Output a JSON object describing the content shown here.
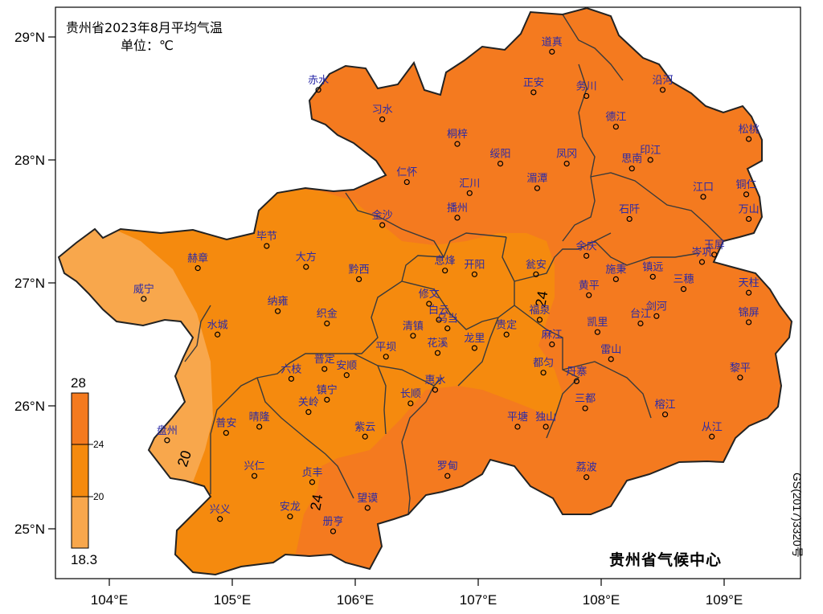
{
  "map": {
    "title": "贵州省2023年8月平均气温",
    "unit": "单位：℃",
    "credit": "贵州省气候中心",
    "approval_no": "GS(2017)3320号"
  },
  "axes": {
    "lon_ticks": [
      "104°E",
      "105°E",
      "106°E",
      "107°E",
      "108°E",
      "109°E"
    ],
    "lat_ticks": [
      "29°N",
      "28°N",
      "27°N",
      "26°N",
      "25°N"
    ]
  },
  "legend": {
    "max": "28",
    "min": "18.3",
    "breaks": [
      "24",
      "20"
    ],
    "colors": [
      "#f47a1f",
      "#f58a0e",
      "#f8a74c"
    ]
  },
  "contours": [
    {
      "label": "20"
    },
    {
      "label": "24"
    },
    {
      "label": "24"
    }
  ],
  "stations": [
    {
      "name": "道真",
      "lon": 107.6,
      "lat": 28.88
    },
    {
      "name": "赤水",
      "lon": 105.7,
      "lat": 28.57
    },
    {
      "name": "习水",
      "lon": 106.22,
      "lat": 28.33
    },
    {
      "name": "正安",
      "lon": 107.45,
      "lat": 28.55
    },
    {
      "name": "务川",
      "lon": 107.88,
      "lat": 28.52
    },
    {
      "name": "沿河",
      "lon": 108.5,
      "lat": 28.57
    },
    {
      "name": "德江",
      "lon": 108.12,
      "lat": 28.27
    },
    {
      "name": "桐梓",
      "lon": 106.83,
      "lat": 28.13
    },
    {
      "name": "松桃",
      "lon": 109.2,
      "lat": 28.17
    },
    {
      "name": "绥阳",
      "lon": 107.18,
      "lat": 27.97
    },
    {
      "name": "凤冈",
      "lon": 107.72,
      "lat": 27.97
    },
    {
      "name": "印江",
      "lon": 108.4,
      "lat": 28.0
    },
    {
      "name": "思南",
      "lon": 108.25,
      "lat": 27.93
    },
    {
      "name": "仁怀",
      "lon": 106.42,
      "lat": 27.82
    },
    {
      "name": "汇川",
      "lon": 106.93,
      "lat": 27.73
    },
    {
      "name": "湄潭",
      "lon": 107.48,
      "lat": 27.77
    },
    {
      "name": "江口",
      "lon": 108.83,
      "lat": 27.7
    },
    {
      "name": "铜仁",
      "lon": 109.18,
      "lat": 27.72
    },
    {
      "name": "播州",
      "lon": 106.83,
      "lat": 27.53
    },
    {
      "name": "石阡",
      "lon": 108.23,
      "lat": 27.52
    },
    {
      "name": "万山",
      "lon": 109.2,
      "lat": 27.52
    },
    {
      "name": "金沙",
      "lon": 106.22,
      "lat": 27.47
    },
    {
      "name": "毕节",
      "lon": 105.28,
      "lat": 27.3
    },
    {
      "name": "余庆",
      "lon": 107.88,
      "lat": 27.22
    },
    {
      "name": "岑巩",
      "lon": 108.82,
      "lat": 27.17
    },
    {
      "name": "玉屏",
      "lon": 108.92,
      "lat": 27.23
    },
    {
      "name": "赫章",
      "lon": 104.72,
      "lat": 27.12
    },
    {
      "name": "大方",
      "lon": 105.6,
      "lat": 27.13
    },
    {
      "name": "息烽",
      "lon": 106.73,
      "lat": 27.1
    },
    {
      "name": "开阳",
      "lon": 106.97,
      "lat": 27.07
    },
    {
      "name": "瓮安",
      "lon": 107.47,
      "lat": 27.07
    },
    {
      "name": "施秉",
      "lon": 108.12,
      "lat": 27.03
    },
    {
      "name": "镇远",
      "lon": 108.42,
      "lat": 27.05
    },
    {
      "name": "三穗",
      "lon": 108.67,
      "lat": 26.95
    },
    {
      "name": "黔西",
      "lon": 106.03,
      "lat": 27.03
    },
    {
      "name": "威宁",
      "lon": 104.28,
      "lat": 26.87
    },
    {
      "name": "黄平",
      "lon": 107.9,
      "lat": 26.9
    },
    {
      "name": "天柱",
      "lon": 109.2,
      "lat": 26.92
    },
    {
      "name": "纳雍",
      "lon": 105.37,
      "lat": 26.77
    },
    {
      "name": "修文",
      "lon": 106.6,
      "lat": 26.83
    },
    {
      "name": "福泉",
      "lon": 107.5,
      "lat": 26.7
    },
    {
      "name": "剑河",
      "lon": 108.45,
      "lat": 26.73
    },
    {
      "name": "台江",
      "lon": 108.32,
      "lat": 26.67
    },
    {
      "name": "织金",
      "lon": 105.77,
      "lat": 26.67
    },
    {
      "name": "白云",
      "lon": 106.68,
      "lat": 26.7
    },
    {
      "name": "乌当",
      "lon": 106.75,
      "lat": 26.63
    },
    {
      "name": "水城",
      "lon": 104.88,
      "lat": 26.58
    },
    {
      "name": "清镇",
      "lon": 106.47,
      "lat": 26.57
    },
    {
      "name": "贵定",
      "lon": 107.23,
      "lat": 26.58
    },
    {
      "name": "凯里",
      "lon": 107.97,
      "lat": 26.6
    },
    {
      "name": "锦屏",
      "lon": 109.2,
      "lat": 26.68
    },
    {
      "name": "龙里",
      "lon": 106.97,
      "lat": 26.47
    },
    {
      "name": "麻江",
      "lon": 107.6,
      "lat": 26.5
    },
    {
      "name": "平坝",
      "lon": 106.25,
      "lat": 26.4
    },
    {
      "name": "花溪",
      "lon": 106.67,
      "lat": 26.43
    },
    {
      "name": "雷山",
      "lon": 108.08,
      "lat": 26.38
    },
    {
      "name": "都匀",
      "lon": 107.53,
      "lat": 26.27
    },
    {
      "name": "普定",
      "lon": 105.75,
      "lat": 26.3
    },
    {
      "name": "安顺",
      "lon": 105.93,
      "lat": 26.25
    },
    {
      "name": "六枝",
      "lon": 105.48,
      "lat": 26.22
    },
    {
      "name": "丹寨",
      "lon": 107.8,
      "lat": 26.2
    },
    {
      "name": "黎平",
      "lon": 109.13,
      "lat": 26.23
    },
    {
      "name": "惠水",
      "lon": 106.65,
      "lat": 26.13
    },
    {
      "name": "镇宁",
      "lon": 105.77,
      "lat": 26.05
    },
    {
      "name": "长顺",
      "lon": 106.45,
      "lat": 26.02
    },
    {
      "name": "三都",
      "lon": 107.87,
      "lat": 25.98
    },
    {
      "name": "榕江",
      "lon": 108.52,
      "lat": 25.93
    },
    {
      "name": "关岭",
      "lon": 105.62,
      "lat": 25.95
    },
    {
      "name": "晴隆",
      "lon": 105.22,
      "lat": 25.83
    },
    {
      "name": "普安",
      "lon": 104.95,
      "lat": 25.78
    },
    {
      "name": "紫云",
      "lon": 106.08,
      "lat": 25.75
    },
    {
      "name": "平塘",
      "lon": 107.32,
      "lat": 25.83
    },
    {
      "name": "独山",
      "lon": 107.55,
      "lat": 25.83
    },
    {
      "name": "从江",
      "lon": 108.9,
      "lat": 25.75
    },
    {
      "name": "盘州",
      "lon": 104.47,
      "lat": 25.72
    },
    {
      "name": "兴仁",
      "lon": 105.18,
      "lat": 25.43
    },
    {
      "name": "贞丰",
      "lon": 105.65,
      "lat": 25.38
    },
    {
      "name": "罗甸",
      "lon": 106.75,
      "lat": 25.43
    },
    {
      "name": "荔波",
      "lon": 107.88,
      "lat": 25.42
    },
    {
      "name": "望谟",
      "lon": 106.1,
      "lat": 25.17
    },
    {
      "name": "兴义",
      "lon": 104.9,
      "lat": 25.08
    },
    {
      "name": "安龙",
      "lon": 105.47,
      "lat": 25.1
    },
    {
      "name": "册亨",
      "lon": 105.82,
      "lat": 24.98
    }
  ]
}
